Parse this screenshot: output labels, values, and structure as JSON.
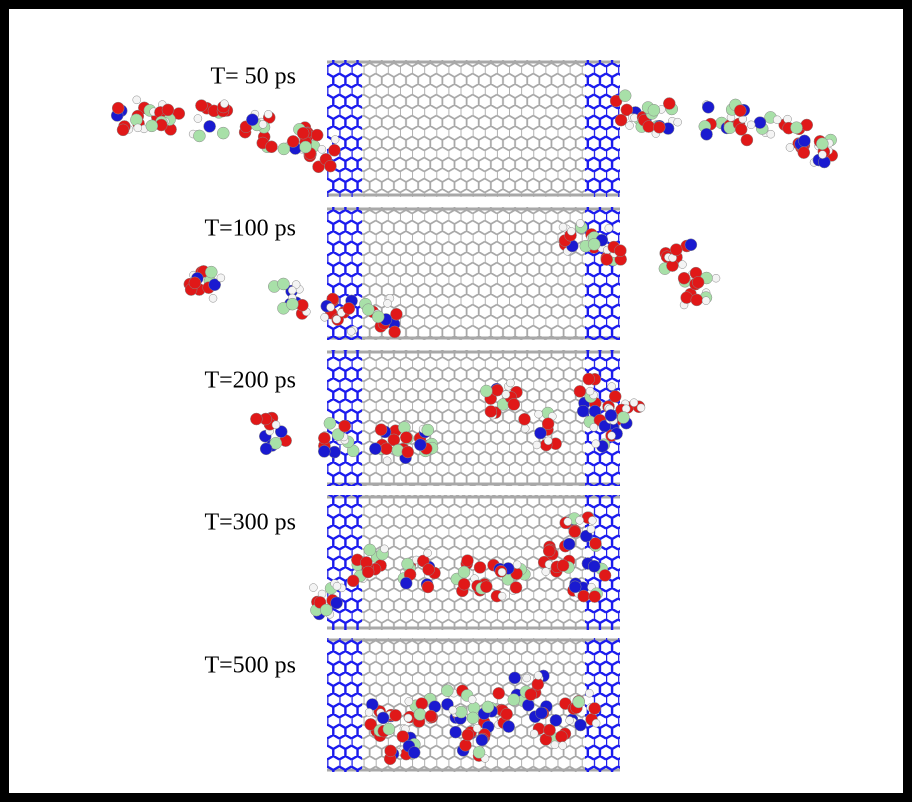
{
  "panels": [
    {
      "label": "T= 50 ps"
    },
    {
      "label": "T=100 ps"
    },
    {
      "label": "T=200 ps"
    },
    {
      "label": "T=300 ps"
    },
    {
      "label": "T=500 ps"
    }
  ]
}
